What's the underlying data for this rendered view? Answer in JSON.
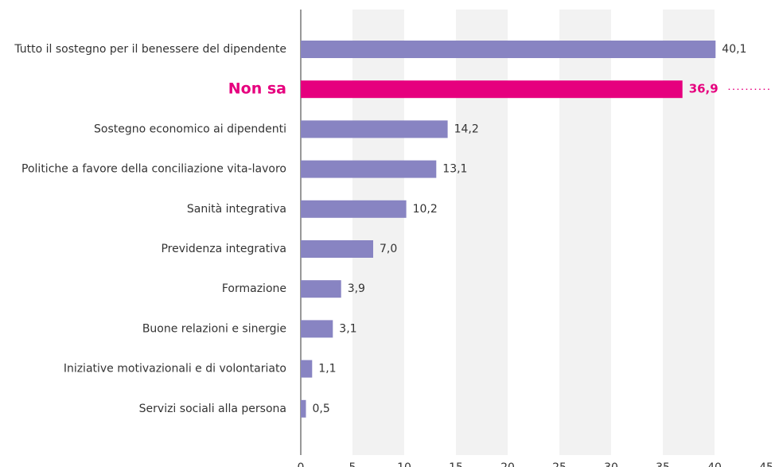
{
  "chart_data": {
    "type": "barh",
    "categories": [
      "Tutto il sostegno per il benessere del dipendente",
      "Non sa",
      "Sostegno economico ai dipendenti",
      "Politiche a favore della conciliazione vita-lavoro",
      "Sanità integrativa",
      "Previdenza integrativa",
      "Formazione",
      "Buone relazioni e sinergie",
      "Iniziative motivazionali e di volontariato",
      "Servizi sociali alla persona"
    ],
    "values": [
      40.1,
      36.9,
      14.2,
      13.1,
      10.2,
      7.0,
      3.9,
      3.1,
      1.1,
      0.5
    ],
    "value_labels": [
      "40,1",
      "36,9",
      "14,2",
      "13,1",
      "10,2",
      "7,0",
      "3,9",
      "3,1",
      "1,1",
      "0,5"
    ],
    "color": "#8884c2",
    "highlight": {
      "index": 1,
      "color": "#e6007e"
    },
    "xlim": [
      0,
      45
    ],
    "xticks": [
      0,
      5,
      10,
      15,
      20,
      25,
      30,
      35,
      40,
      45
    ],
    "band_color": "#f2f2f2"
  }
}
